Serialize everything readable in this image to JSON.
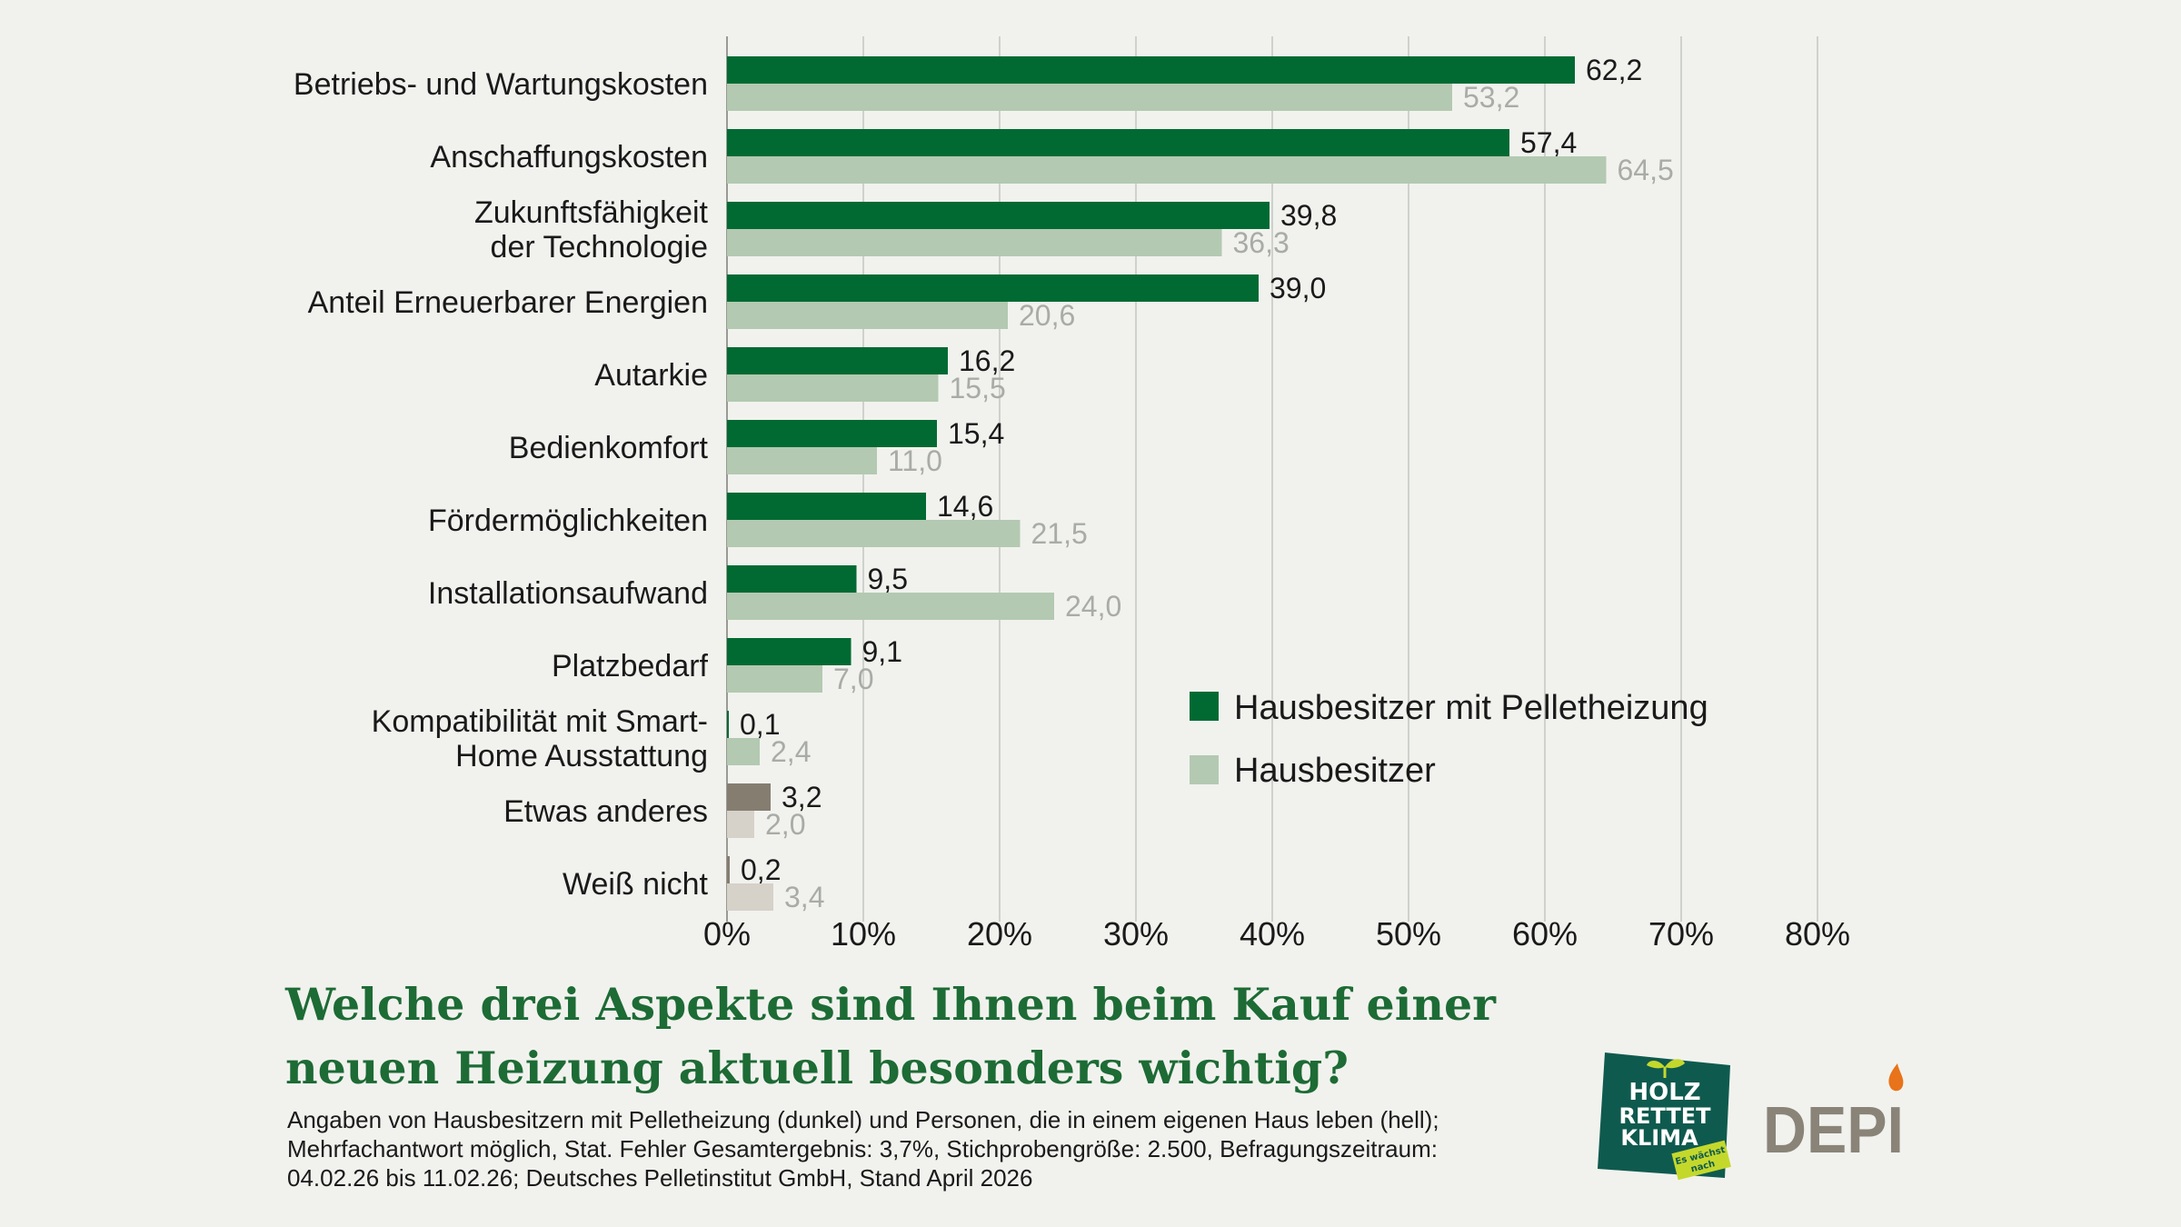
{
  "chart_data": {
    "type": "bar",
    "orientation": "horizontal",
    "categories": [
      [
        "Betriebs- und Wartungskosten"
      ],
      [
        "Anschaffungskosten"
      ],
      [
        "Zukunftsfähigkeit",
        "der Technologie"
      ],
      [
        "Anteil Erneuerbarer Energien"
      ],
      [
        "Autarkie"
      ],
      [
        "Bedienkomfort"
      ],
      [
        "Fördermöglichkeiten"
      ],
      [
        "Installationsaufwand"
      ],
      [
        "Platzbedarf"
      ],
      [
        "Kompatibilität mit Smart-",
        "Home Ausstattung"
      ],
      [
        "Etwas anderes"
      ],
      [
        "Weiß nicht"
      ]
    ],
    "series": [
      {
        "name": "Hausbesitzer mit Pelletheizung",
        "values": [
          62.2,
          57.4,
          39.8,
          39.0,
          16.2,
          15.4,
          14.6,
          9.5,
          9.1,
          0.1,
          3.2,
          0.2
        ],
        "labels": [
          "62,2",
          "57,4",
          "39,8",
          "39,0",
          "16,2",
          "15,4",
          "14,6",
          "9,5",
          "9,1",
          "0,1",
          "3,2",
          "0,2"
        ]
      },
      {
        "name": "Hausbesitzer",
        "values": [
          53.2,
          64.5,
          36.3,
          20.6,
          15.5,
          11.0,
          21.5,
          24.0,
          7.0,
          2.4,
          2.0,
          3.4
        ],
        "labels": [
          "53,2",
          "64,5",
          "36,3",
          "20,6",
          "15,5",
          "11,0",
          "21,5",
          "24,0",
          "7,0",
          "2,4",
          "2,0",
          "3,4"
        ]
      }
    ],
    "x_ticks": [
      "0%",
      "10%",
      "20%",
      "30%",
      "40%",
      "50%",
      "60%",
      "70%",
      "80%"
    ],
    "xlim": [
      0,
      80
    ],
    "grid": "vertical",
    "legend_position": "right",
    "colors": {
      "dark": "#006a32",
      "light": "#b3c9b1",
      "dark_other": "#857d70",
      "light_other": "#d6d1c9"
    }
  },
  "question": {
    "line1": "Welche drei Aspekte sind Ihnen beim Kauf einer",
    "line2": "neuen Heizung aktuell besonders wichtig?"
  },
  "note": {
    "line1": "Angaben von Hausbesitzern mit Pelletheizung (dunkel) und Personen, die in einem eigenen Haus leben (hell);",
    "line2": "Mehrfachantwort möglich, Stat. Fehler Gesamtergebnis: 3,7%, Stichprobengröße: 2.500, Befragungszeitraum:",
    "line3": "04.02.26 bis 11.02.26; Deutsches Pelletinstitut GmbH, Stand April 2026"
  },
  "logos": {
    "holz": {
      "word1": "HOLZ",
      "word2": "RETTET",
      "word3": "KLIMA",
      "tag1": "Es wächst",
      "tag2": "nach",
      "colors": {
        "badge": "#0f5a4e",
        "tag": "#c4d82c"
      }
    },
    "depi": {
      "text": "DEPI",
      "colors": {
        "text": "#8a8478",
        "flame": "#e8731a"
      }
    }
  }
}
